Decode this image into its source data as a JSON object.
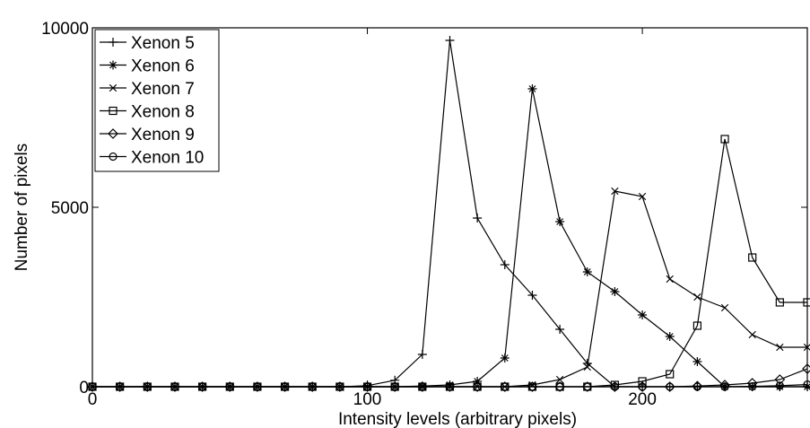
{
  "chart_data": {
    "type": "line",
    "title": "",
    "xlabel": "Intensity levels (arbitrary pixels)",
    "ylabel": "Number of pixels",
    "xlim": [
      0,
      260
    ],
    "ylim": [
      0,
      10000
    ],
    "xticks": [
      0,
      100,
      200
    ],
    "yticks": [
      0,
      5000,
      10000
    ],
    "x": [
      0,
      10,
      20,
      30,
      40,
      50,
      60,
      70,
      80,
      90,
      100,
      110,
      120,
      130,
      140,
      150,
      160,
      170,
      180,
      190,
      200,
      210,
      220,
      230,
      240,
      250,
      260
    ],
    "legend_position": "top-left",
    "grid": false,
    "line_color": "#000000",
    "series": [
      {
        "name": "Xenon 5",
        "marker": "plus",
        "values": [
          0,
          0,
          0,
          0,
          0,
          0,
          0,
          0,
          0,
          0,
          30,
          180,
          900,
          9650,
          4700,
          3400,
          2550,
          1600,
          650,
          0,
          0,
          0,
          0,
          0,
          0,
          0,
          0
        ]
      },
      {
        "name": "Xenon 6",
        "marker": "star",
        "values": [
          0,
          0,
          0,
          0,
          0,
          0,
          0,
          0,
          0,
          0,
          0,
          0,
          20,
          50,
          150,
          800,
          8300,
          4600,
          3200,
          2650,
          2000,
          1400,
          700,
          0,
          0,
          0,
          0
        ]
      },
      {
        "name": "Xenon 7",
        "marker": "x",
        "values": [
          0,
          0,
          0,
          0,
          0,
          0,
          0,
          0,
          0,
          0,
          0,
          0,
          0,
          0,
          0,
          0,
          50,
          200,
          550,
          5450,
          5300,
          3000,
          2500,
          2200,
          1450,
          1100,
          1100
        ]
      },
      {
        "name": "Xenon 8",
        "marker": "square",
        "values": [
          0,
          0,
          0,
          0,
          0,
          0,
          0,
          0,
          0,
          0,
          0,
          0,
          0,
          0,
          0,
          0,
          0,
          0,
          0,
          50,
          150,
          350,
          1700,
          6900,
          3600,
          2350,
          2350
        ]
      },
      {
        "name": "Xenon 9",
        "marker": "diamond",
        "values": [
          0,
          0,
          0,
          0,
          0,
          0,
          0,
          0,
          0,
          0,
          0,
          0,
          0,
          0,
          0,
          0,
          0,
          0,
          0,
          0,
          0,
          0,
          20,
          50,
          100,
          200,
          500
        ]
      },
      {
        "name": "Xenon 10",
        "marker": "circle",
        "values": [
          0,
          0,
          0,
          0,
          0,
          0,
          0,
          0,
          0,
          0,
          0,
          0,
          0,
          0,
          0,
          0,
          0,
          0,
          0,
          0,
          0,
          0,
          0,
          0,
          10,
          30,
          60
        ]
      }
    ]
  }
}
